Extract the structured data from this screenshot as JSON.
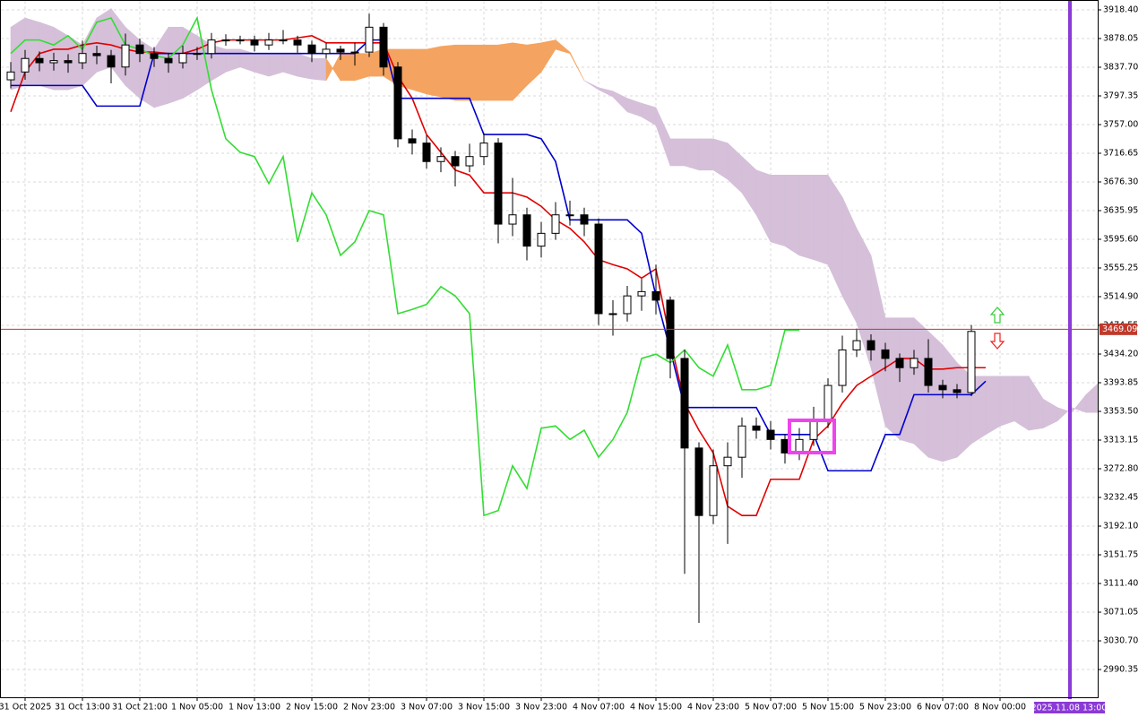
{
  "chart_data": {
    "type": "candlestick",
    "categories": [
      null,
      "31 Oct 2025",
      null,
      null,
      null,
      "31 Oct 13:00",
      null,
      null,
      null,
      "31 Oct 21:00",
      null,
      null,
      null,
      "1 Nov 05:00",
      null,
      null,
      null,
      "1 Nov 13:00",
      null,
      null,
      null,
      "2 Nov 15:00",
      null,
      null,
      null,
      "2 Nov 23:00",
      null,
      null,
      null,
      "3 Nov 07:00",
      null,
      null,
      null,
      "3 Nov 15:00",
      null,
      null,
      null,
      "3 Nov 23:00",
      null,
      null,
      null,
      "4 Nov 07:00",
      null,
      null,
      null,
      "4 Nov 15:00",
      null,
      null,
      null,
      "4 Nov 23:00",
      null,
      null,
      null,
      "5 Nov 07:00",
      null,
      null,
      null,
      "5 Nov 15:00",
      null,
      null,
      null,
      "5 Nov 23:00",
      null,
      null,
      null,
      "6 Nov 07:00",
      null,
      null,
      null,
      "8 Nov 00:00",
      null,
      null,
      null,
      null,
      null,
      null,
      null
    ],
    "ohlc": {
      "up_color": "#ffffff",
      "down_color": "#000000",
      "open": [
        3820,
        3831,
        3850,
        3844,
        3847,
        3844,
        3857,
        3854,
        3838,
        3869,
        3857,
        3850,
        3844,
        3857,
        3857,
        3876,
        3876,
        3876,
        3869,
        3876,
        3876,
        3869,
        3857,
        3863,
        3859,
        3859,
        3894,
        3838,
        3737,
        3731,
        3705,
        3712,
        3699,
        3712,
        3731,
        3617,
        3630,
        3586,
        3604,
        3630,
        3630,
        3617,
        3491,
        3491,
        3516,
        3522,
        3510,
        3428,
        3302,
        3207,
        3277,
        3289,
        3333,
        3327,
        3314,
        3295,
        3314,
        3340,
        3390,
        3440,
        3453,
        3440,
        3428,
        3415,
        3428,
        3390,
        3384,
        3380,
        null,
        null,
        null,
        null,
        null,
        null,
        null,
        null,
        null
      ],
      "high": [
        3845,
        3862,
        3860,
        3858,
        3856,
        3875,
        3868,
        3862,
        3885,
        3878,
        3866,
        3858,
        3868,
        3866,
        3886,
        3884,
        3882,
        3882,
        3886,
        3890,
        3882,
        3875,
        3872,
        3868,
        3872,
        3913,
        3900,
        3845,
        3750,
        3742,
        3725,
        3720,
        3730,
        3745,
        3738,
        3682,
        3640,
        3620,
        3648,
        3650,
        3640,
        3625,
        3510,
        3530,
        3540,
        3560,
        3515,
        3440,
        3310,
        3300,
        3310,
        3345,
        3345,
        3340,
        3322,
        3330,
        3360,
        3400,
        3460,
        3470,
        3462,
        3450,
        3435,
        3440,
        3455,
        3398,
        3392,
        3475,
        null,
        null,
        null,
        null,
        null,
        null,
        null,
        null,
        null
      ],
      "low": [
        3808,
        3820,
        3832,
        3833,
        3830,
        3835,
        3842,
        3815,
        3826,
        3845,
        3838,
        3830,
        3836,
        3848,
        3850,
        3868,
        3870,
        3860,
        3862,
        3870,
        3858,
        3845,
        3850,
        3848,
        3840,
        3852,
        3826,
        3725,
        3715,
        3695,
        3690,
        3670,
        3690,
        3700,
        3590,
        3600,
        3566,
        3570,
        3595,
        3615,
        3600,
        3475,
        3460,
        3480,
        3495,
        3490,
        3400,
        3125,
        3056,
        3195,
        3167,
        3260,
        3315,
        3300,
        3280,
        3285,
        3305,
        3330,
        3380,
        3430,
        3425,
        3410,
        3395,
        3405,
        3380,
        3372,
        3372,
        3375,
        null,
        null,
        null,
        null,
        null,
        null,
        null,
        null,
        null
      ],
      "close": [
        3831,
        3850,
        3844,
        3847,
        3844,
        3857,
        3854,
        3838,
        3869,
        3857,
        3850,
        3844,
        3857,
        3857,
        3876,
        3876,
        3876,
        3869,
        3876,
        3876,
        3869,
        3857,
        3863,
        3859,
        3859,
        3894,
        3838,
        3737,
        3731,
        3705,
        3712,
        3699,
        3712,
        3731,
        3617,
        3630,
        3586,
        3604,
        3630,
        3630,
        3617,
        3491,
        3491,
        3516,
        3522,
        3510,
        3428,
        3302,
        3207,
        3277,
        3289,
        3333,
        3327,
        3314,
        3295,
        3314,
        3340,
        3390,
        3440,
        3453,
        3440,
        3428,
        3415,
        3428,
        3390,
        3384,
        3380,
        3466,
        null,
        null,
        null,
        null,
        null,
        null,
        null,
        null,
        null
      ]
    },
    "cloud": {
      "up_color": "#d5bfd9",
      "down_color": "#f4a460",
      "span_a": [
        3894,
        3907,
        3901,
        3894,
        3882,
        3869,
        3907,
        3920,
        3894,
        3876,
        3863,
        3894,
        3894,
        3882,
        3869,
        3863,
        3863,
        3857,
        3857,
        3857,
        3857,
        3850,
        3850,
        3819,
        3819,
        3825,
        3825,
        3812,
        3806,
        3800,
        3796,
        3791,
        3791,
        3791,
        3791,
        3791,
        3812,
        3831,
        3863,
        3857,
        3819,
        3809,
        3804,
        3794,
        3787,
        3781,
        3737,
        3737,
        3737,
        3737,
        3731,
        3712,
        3693,
        3686,
        3686,
        3686,
        3686,
        3686,
        3655,
        3611,
        3573,
        3485,
        3485,
        3485,
        3466,
        3447,
        3422,
        3403,
        3403,
        3403,
        3403,
        3403,
        3371,
        3359,
        3352,
        3377,
        3396
      ],
      "span_b": [
        3806,
        3812,
        3812,
        3806,
        3806,
        3812,
        3831,
        3838,
        3812,
        3794,
        3781,
        3787,
        3794,
        3806,
        3819,
        3831,
        3838,
        3831,
        3825,
        3831,
        3825,
        3821,
        3819,
        3857,
        3857,
        3857,
        3863,
        3863,
        3863,
        3863,
        3867,
        3869,
        3869,
        3869,
        3869,
        3872,
        3869,
        3872,
        3876,
        3859,
        3819,
        3806,
        3796,
        3775,
        3768,
        3756,
        3699,
        3699,
        3693,
        3693,
        3680,
        3661,
        3630,
        3592,
        3586,
        3573,
        3567,
        3560,
        3516,
        3478,
        3415,
        3333,
        3314,
        3308,
        3289,
        3283,
        3289,
        3308,
        3321,
        3333,
        3340,
        3327,
        3330,
        3340,
        3359,
        3352,
        3352
      ]
    },
    "series": [
      {
        "color": "#e00000",
        "values": [
          3775,
          3831,
          3857,
          3863,
          3863,
          3869,
          3872,
          3869,
          3863,
          3859,
          3859,
          3857,
          3857,
          3863,
          3872,
          3876,
          3876,
          3876,
          3876,
          3876,
          3879,
          3882,
          3872,
          3872,
          3872,
          3872,
          3872,
          3825,
          3794,
          3743,
          3718,
          3693,
          3686,
          3661,
          3661,
          3661,
          3655,
          3642,
          3623,
          3611,
          3592,
          3567,
          3560,
          3554,
          3541,
          3554,
          3453,
          3365,
          3327,
          3295,
          3220,
          3207,
          3207,
          3258,
          3258,
          3258,
          3314,
          3333,
          3365,
          3390,
          3403,
          3415,
          3428,
          3428,
          3413,
          3413,
          3415,
          3415,
          3415,
          null,
          null,
          null,
          null,
          null,
          null,
          null,
          null
        ]
      },
      {
        "color": "#0000cc",
        "values": [
          3812,
          3812,
          3812,
          3812,
          3812,
          3812,
          3783,
          3783,
          3783,
          3783,
          3857,
          3857,
          3857,
          3857,
          3857,
          3857,
          3857,
          3857,
          3857,
          3857,
          3857,
          3857,
          3857,
          3857,
          3857,
          3876,
          3876,
          3794,
          3794,
          3794,
          3794,
          3794,
          3794,
          3743,
          3743,
          3743,
          3743,
          3737,
          3705,
          3623,
          3623,
          3623,
          3623,
          3623,
          3604,
          3516,
          3440,
          3359,
          3359,
          3359,
          3359,
          3359,
          3359,
          3321,
          3321,
          3321,
          3321,
          3270,
          3270,
          3270,
          3270,
          3321,
          3321,
          3377,
          3377,
          3377,
          3377,
          3377,
          3396,
          null,
          null,
          null,
          null,
          null,
          null,
          null,
          null
        ]
      },
      {
        "color": "#33dd33",
        "values": [
          3857,
          3876,
          3876,
          3869,
          3882,
          3863,
          3901,
          3907,
          3869,
          3863,
          3854,
          3850,
          3869,
          3907,
          3806,
          3737,
          3718,
          3712,
          3674,
          3712,
          3592,
          3661,
          3630,
          3573,
          3592,
          3636,
          3630,
          3491,
          3497,
          3504,
          3529,
          3516,
          3491,
          3207,
          3214,
          3277,
          3245,
          3330,
          3333,
          3314,
          3327,
          3289,
          3314,
          3352,
          3428,
          3434,
          3422,
          3440,
          3415,
          3403,
          3447,
          3384,
          3384,
          3390,
          3468,
          3468,
          null,
          null,
          null,
          null,
          null,
          null,
          null,
          null,
          null,
          null,
          null,
          null,
          null,
          null,
          null,
          null,
          null,
          null,
          null,
          null,
          null
        ]
      }
    ],
    "current_price": 3469.09,
    "cursor_label": "2025.11.08 13:00",
    "ylim": [
      2951.3,
      3929.75
    ],
    "yticks": [
      {
        "value": 3918.4,
        "label": "3918.40"
      },
      {
        "value": 3878.05,
        "label": "3878.05"
      },
      {
        "value": 3837.7,
        "label": "3837.70"
      },
      {
        "value": 3797.35,
        "label": "3797.35"
      },
      {
        "value": 3757,
        "label": "3757.00"
      },
      {
        "value": 3716.65,
        "label": "3716.65"
      },
      {
        "value": 3676.3,
        "label": "3676.30"
      },
      {
        "value": 3635.95,
        "label": "3635.95"
      },
      {
        "value": 3595.6,
        "label": "3595.60"
      },
      {
        "value": 3555.25,
        "label": "3555.25"
      },
      {
        "value": 3514.9,
        "label": "3514.90"
      },
      {
        "value": 3474.55,
        "label": "3474.55"
      },
      {
        "value": 3434.2,
        "label": "3434.20"
      },
      {
        "value": 3393.85,
        "label": "3393.85"
      },
      {
        "value": 3353.5,
        "label": "3353.50"
      },
      {
        "value": 3313.15,
        "label": "3313.15"
      },
      {
        "value": 3272.8,
        "label": "3272.80"
      },
      {
        "value": 3232.45,
        "label": "3232.45"
      },
      {
        "value": 3192.1,
        "label": "3192.10"
      },
      {
        "value": 3151.75,
        "label": "3151.75"
      },
      {
        "value": 3111.4,
        "label": "3111.40"
      },
      {
        "value": 3071.05,
        "label": "3071.05"
      },
      {
        "value": 3030.7,
        "label": "3030.70"
      },
      {
        "value": 2990.35,
        "label": "2990.35"
      }
    ],
    "grid": true
  }
}
